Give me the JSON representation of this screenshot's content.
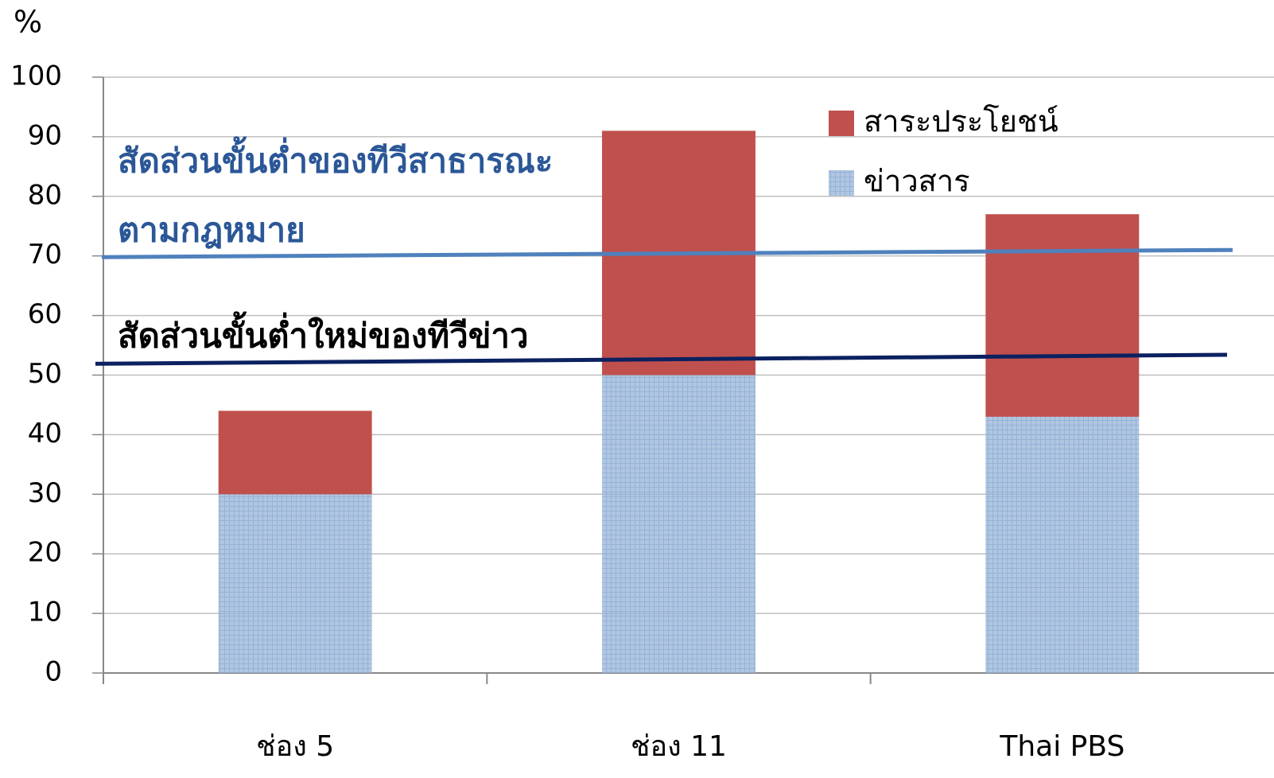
{
  "chart_data": {
    "type": "stacked_bar",
    "y_label": "%",
    "categories": [
      "ช่อง 5",
      "ช่อง 11",
      "Thai PBS"
    ],
    "series": [
      {
        "name": "สาระประโยชน์",
        "color": "#c0504d",
        "values": [
          14,
          41,
          34
        ]
      },
      {
        "name": "ข่าวสาร",
        "color": "#95b3d7",
        "pattern": "crosshatch",
        "values": [
          30,
          50,
          43
        ]
      }
    ],
    "ylim": [
      0,
      100
    ],
    "yticks": [
      0,
      10,
      20,
      30,
      40,
      50,
      60,
      70,
      80,
      90,
      100
    ],
    "grid": true,
    "legend": "upper right",
    "reference_lines": [
      {
        "label": [
          "สัดส่วนขั้นต่ำของทีวีสาธารณะ",
          "ตามกฎหมาย"
        ],
        "color": "#4f81bd",
        "text_color": "#2b5797",
        "y": [
          69.8,
          71.0
        ]
      },
      {
        "label": [
          "สัดส่วนขั้นต่ำใหม่ของทีวีข่าว"
        ],
        "color": "#0b2160",
        "text_color": "#000000",
        "y": [
          51.9,
          53.4
        ]
      }
    ]
  }
}
